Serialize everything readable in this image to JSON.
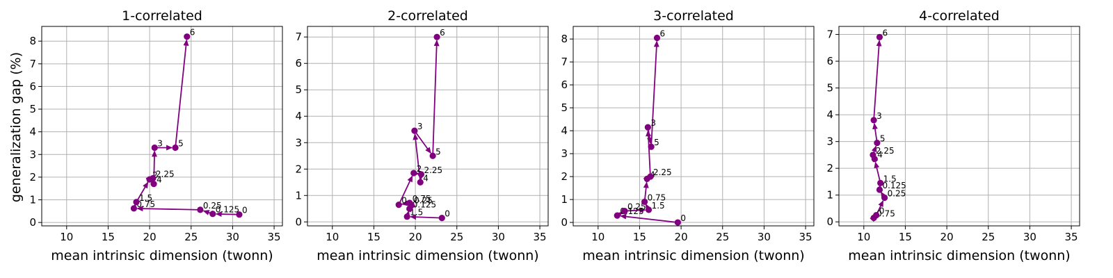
{
  "colors": {
    "series": "#800080",
    "grid": "#b0b0b0",
    "axis": "#000000",
    "background": "#ffffff"
  },
  "shared_ylabel": "generalization gap (%)",
  "chart_data": [
    {
      "type": "line",
      "title": "1-correlated",
      "xlabel": "mean intrinsic dimension (twonn)",
      "ylabel": "generalization gap (%)",
      "xlim": [
        7,
        36
      ],
      "ylim": [
        -0.15,
        8.65
      ],
      "xticks": [
        10,
        15,
        20,
        25,
        30,
        35
      ],
      "yticks": [
        0,
        1,
        2,
        3,
        4,
        5,
        6,
        7,
        8
      ],
      "grid": true,
      "legend": "none",
      "series": [
        {
          "marker": "circle",
          "arrows": true,
          "labels": [
            "0",
            "0.125",
            "0.25",
            "0.75",
            "1.5",
            "2",
            "2.25",
            "4",
            "3",
            "5",
            "6"
          ],
          "x": [
            30.8,
            27.6,
            26.1,
            18.1,
            18.4,
            20.0,
            20.4,
            20.5,
            20.6,
            23.1,
            24.5
          ],
          "y": [
            0.35,
            0.38,
            0.56,
            0.62,
            0.9,
            1.9,
            1.95,
            1.7,
            3.3,
            3.3,
            8.2
          ]
        }
      ]
    },
    {
      "type": "line",
      "title": "2-correlated",
      "xlabel": "mean intrinsic dimension (twonn)",
      "ylabel": "",
      "xlim": [
        7,
        36
      ],
      "ylim": [
        -0.15,
        7.4
      ],
      "xticks": [
        10,
        15,
        20,
        25,
        30,
        35
      ],
      "yticks": [
        0,
        1,
        2,
        3,
        4,
        5,
        6,
        7
      ],
      "grid": true,
      "legend": "none",
      "series": [
        {
          "marker": "circle",
          "arrows": true,
          "labels": [
            "0",
            "1.5",
            "0.125",
            "0.25",
            "0.75",
            "0",
            "2",
            "2.25",
            "4",
            "3",
            "5",
            "6"
          ],
          "x": [
            23.2,
            19.0,
            19.3,
            19.5,
            19.3,
            18.0,
            19.8,
            20.7,
            20.6,
            19.9,
            22.1,
            22.6
          ],
          "y": [
            0.15,
            0.2,
            0.5,
            0.65,
            0.72,
            0.65,
            1.85,
            1.8,
            1.5,
            3.45,
            2.5,
            7.0
          ]
        }
      ]
    },
    {
      "type": "line",
      "title": "3-correlated",
      "xlabel": "mean intrinsic dimension (twonn)",
      "ylabel": "",
      "xlim": [
        7,
        36
      ],
      "ylim": [
        -0.15,
        8.55
      ],
      "xticks": [
        10,
        15,
        20,
        25,
        30,
        35
      ],
      "yticks": [
        0,
        1,
        2,
        3,
        4,
        5,
        6,
        7,
        8
      ],
      "grid": true,
      "legend": "none",
      "series": [
        {
          "marker": "circle",
          "arrows": true,
          "labels": [
            "0",
            "0.125",
            "0.25",
            "1.5",
            "0.75",
            "4",
            "2.25",
            "3",
            "5",
            "6"
          ],
          "x": [
            19.6,
            12.3,
            13.2,
            16.1,
            15.6,
            15.9,
            16.3,
            16.0,
            16.4,
            17.1
          ],
          "y": [
            0.0,
            0.3,
            0.5,
            0.55,
            0.9,
            1.9,
            2.0,
            4.15,
            3.3,
            8.05
          ]
        }
      ]
    },
    {
      "type": "line",
      "title": "4-correlated",
      "xlabel": "mean intrinsic dimension (twonn)",
      "ylabel": "",
      "xlim": [
        7,
        36
      ],
      "ylim": [
        -0.15,
        7.3
      ],
      "xticks": [
        10,
        15,
        20,
        25,
        30,
        35
      ],
      "yticks": [
        0,
        1,
        2,
        3,
        4,
        5,
        6,
        7
      ],
      "grid": true,
      "legend": "none",
      "series": [
        {
          "marker": "circle",
          "arrows": true,
          "labels": [
            "0.75",
            "0",
            "0.25",
            "0.125",
            "1.5",
            "4",
            "2.25",
            "5",
            "3",
            "6"
          ],
          "x": [
            11.2,
            11.5,
            12.5,
            11.9,
            12.0,
            11.3,
            11.1,
            11.6,
            11.2,
            11.9
          ],
          "y": [
            0.15,
            0.25,
            0.9,
            1.2,
            1.45,
            2.35,
            2.5,
            2.95,
            3.8,
            6.9
          ]
        }
      ]
    }
  ]
}
